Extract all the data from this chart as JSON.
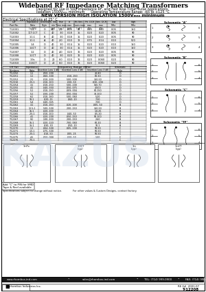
{
  "title": "Wideband RF Impedance Matching Transformers",
  "subtitle1": "Designed for use in 50Ω Impedance RF, and Fast Rise Time, Pulse Applications.",
  "subtitle2": "Isolation 1500Vₘₙₓ minimum      Operating Temperature Range: -65 to +125 °C",
  "new_version": "NEW VERSION HIGH ISOLATION 1500Vₘₙₓ minimum",
  "elec_spec_title": "Electrical Specifications at 25° C",
  "table1_data": [
    [
      "T-12001",
      "1:1",
      "D",
      "40",
      "2.2",
      "0.15",
      "12",
      "0.20",
      "0.20",
      "0.05",
      "150"
    ],
    [
      "T-12002",
      "1CT:1CT",
      "C",
      "40",
      "3.0",
      "0.18",
      "15",
      "0.20",
      "0.20",
      "0.05",
      "90"
    ],
    [
      "T-12003",
      "1:1:1",
      "B",
      "40",
      "3.0",
      "0.18",
      "15",
      "0.20",
      "0.20",
      "0.05",
      "90"
    ],
    [
      "T-12004",
      "1:1:1",
      "A",
      "40",
      "2.0",
      "0.10",
      "12",
      "0.75",
      "0.14",
      "0.10",
      "500"
    ],
    [
      "T-12005",
      "1:4",
      "D",
      "40",
      "3.0",
      "0.14",
      "15",
      "0.20",
      "0.20",
      "0.10",
      "150"
    ],
    [
      "T-12006",
      "1:4CT",
      "D",
      "40",
      "3.0",
      "0.14",
      "15",
      "0.20",
      "0.20",
      "0.10",
      "150"
    ],
    [
      "T-12007",
      "1:2",
      "D",
      "40",
      "4.0",
      "0.20",
      "16",
      "0.20",
      "0.20",
      "0.05",
      "90"
    ],
    [
      "T-12008",
      "1:2CT",
      "D",
      "40",
      "3.0",
      "0.20",
      "16",
      "0.20",
      "0.20",
      "0.05",
      "90"
    ],
    [
      "T-12009",
      "1:9s",
      "D",
      "20",
      "6.0",
      "0.10",
      "16",
      "0.20",
      "0.060",
      "0.20",
      "90"
    ],
    [
      "T-12010",
      "1:16CT",
      "D",
      "20",
      "6.0",
      "0.10",
      "16",
      "0.20",
      "0.060",
      "0.20",
      "90"
    ]
  ],
  "table2_data": [
    [
      "T-12250",
      "1:1",
      ".050-.200",
      "",
      "20-80",
      "D"
    ],
    [
      "T-12251",
      "1:1",
      ".060-.300",
      ".010-.150",
      "60-90",
      "D"
    ],
    [
      "T-12252",
      "2:1",
      ".010-.200",
      ".500-.500",
      "350-50",
      "D"
    ],
    [
      "T-12310",
      "2.5:1",
      ".010-.100",
      ".030-.50",
      ".030-.200",
      "D"
    ],
    [
      "T-12254",
      "3:1",
      ".010-.250",
      ".500-.200",
      "150-70",
      "D"
    ],
    [
      "T-12255",
      "4:1",
      ".040-.350",
      ".050-.075",
      "4-500",
      "D"
    ],
    [
      "T-12256",
      "5:1",
      ".010-.150",
      ".009-.004",
      "60-150",
      "D"
    ],
    [
      "T-12257",
      "5:1",
      ".030-.200",
      ".050-.004",
      "30-100",
      "D"
    ],
    [
      "T-12258",
      "6:1",
      ".010-.160",
      ".500-.060",
      "5-20",
      "D"
    ],
    [
      "T-12259",
      "10:1",
      ".020-.15",
      ".060-.10",
      "7-30",
      "D"
    ],
    [
      "T-12261",
      "5:4",
      ".040-.025",
      "",
      "7-30",
      "D"
    ],
    [
      "T-12262",
      "3:1",
      ".010-.150",
      ".020-.100",
      ".005-.50",
      "B"
    ],
    [
      "T-12263",
      "12.5:1",
      ".500-.500",
      ".200-.150",
      "350-50",
      "B"
    ],
    [
      "T-12264",
      "15:1",
      ".020-.100",
      "",
      "1.0-25",
      "B"
    ],
    [
      "T-12265",
      "2.5:1",
      ".010-.100",
      ".040-.50",
      ".05-20",
      "B"
    ],
    [
      "T-12266",
      "4:1",
      ".020-.200",
      ".050-.150",
      "50-100",
      "B"
    ],
    [
      "T-12267",
      "9:1",
      ".100-.200",
      ".200-.150",
      "2-60",
      "B"
    ],
    [
      "T-12268",
      "16:1",
      ".020-.120",
      ".700-.060",
      "60-20",
      "B"
    ],
    [
      "T-12269",
      "36:1",
      ".030-.30",
      ".050-.10",
      "10-1",
      "B"
    ],
    [
      "T-12270",
      "1:1",
      ".004-.500",
      ".005-.200",
      "50-50",
      "C"
    ],
    [
      "T-12271",
      "1.5:1",
      ".075-.500",
      "",
      "50-50",
      "C"
    ],
    [
      "T-12273",
      "2.5:1",
      ".010-.50",
      ".005-.25",
      "50-50",
      "C"
    ],
    [
      "T-12275",
      "4:1",
      ".050-.000",
      ".030-.50",
      "1-60",
      "C"
    ],
    [
      "T-12276",
      "7.5:1",
      "",
      "",
      "",
      "C"
    ]
  ],
  "footer_website": "www.rhombus-ind.com",
  "footer_email": "sales@rhombus-ind.com",
  "footer_tel": "TEL: (714) 999-0900",
  "footer_fax": "FAX: (714) 996-0071",
  "footer_note": "Specifications subject to change without notice.",
  "footer_note2": "For other values & Custom Designs, contact factory.",
  "company": "rhombus Industries Inc.",
  "part_number": "T-12208",
  "rev": "RE 0#  2001-07",
  "bg_color": "#ffffff"
}
